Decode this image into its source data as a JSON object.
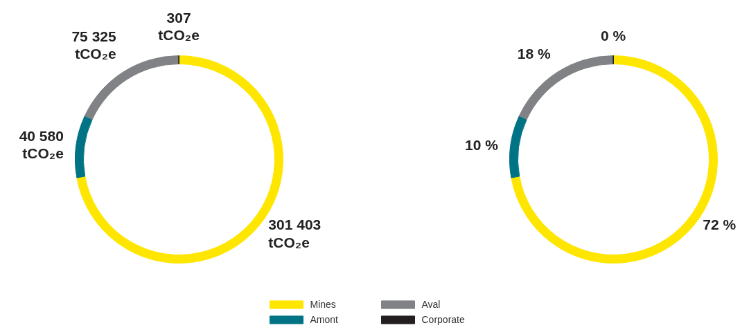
{
  "chart_data": [
    {
      "type": "donut",
      "categories": [
        "Mines",
        "Amont",
        "Aval",
        "Corporate"
      ],
      "values": [
        301403,
        40580,
        75325,
        307
      ],
      "colors": [
        "#ffe600",
        "#007385",
        "#808285",
        "#231f20"
      ],
      "value_labels": [
        "301 403\ntCO₂e",
        "40 580\ntCO₂e",
        "75 325\ntCO₂e",
        "307\ntCO₂e"
      ],
      "legend": "bottom"
    },
    {
      "type": "donut",
      "categories": [
        null,
        null,
        null,
        null
      ],
      "values": [
        72.17,
        9.72,
        18.04,
        0.07
      ],
      "colors": [
        "#ffe600",
        "#007385",
        "#808285",
        "#231f20"
      ],
      "value_labels": [
        "72 %",
        "10 %",
        "18 %",
        "0 %"
      ]
    }
  ]
}
